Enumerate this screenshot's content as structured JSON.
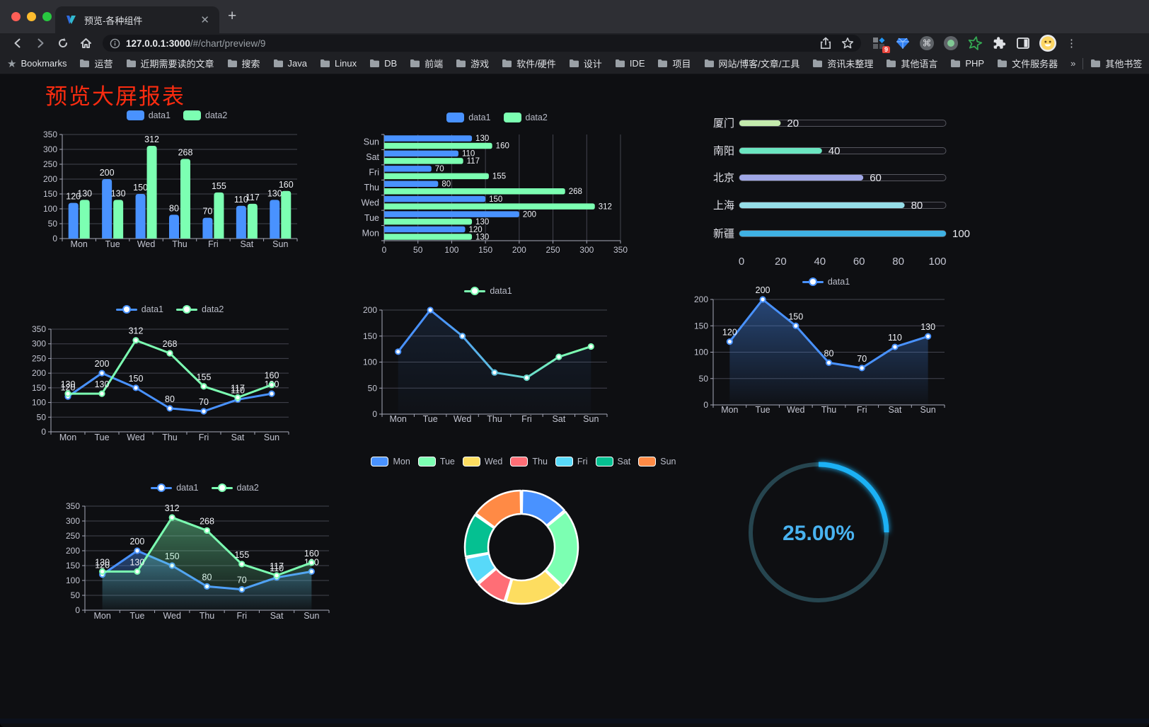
{
  "browser": {
    "tab_title": "预览-各种组件",
    "new_tab_label": "+",
    "url_host": "127.0.0.1:3000",
    "url_path": "/#/chart/preview/9",
    "extension_badge": "9",
    "bookmarks_label": "Bookmarks",
    "bookmarks": [
      "运营",
      "近期需要读的文章",
      "搜索",
      "Java",
      "Linux",
      "DB",
      "前端",
      "游戏",
      "软件/硬件",
      "设计",
      "IDE",
      "项目",
      "网站/博客/文章/工具",
      "资讯未整理",
      "其他语言",
      "PHP",
      "文件服务器"
    ],
    "bookmarks_overflow": "»",
    "other_bookmarks": "其他书签"
  },
  "page": {
    "title": "预览大屏报表",
    "title_color": "#fb2c10",
    "background": "#0e0f12"
  },
  "chart_data": [
    {
      "id": "bar-vertical",
      "type": "bar",
      "categories": [
        "Mon",
        "Tue",
        "Wed",
        "Thu",
        "Fri",
        "Sat",
        "Sun"
      ],
      "series": [
        {
          "name": "data1",
          "color": "#4992ff",
          "values": [
            120,
            200,
            150,
            80,
            70,
            110,
            130
          ]
        },
        {
          "name": "data2",
          "color": "#7cffb2",
          "values": [
            130,
            130,
            312,
            268,
            155,
            117,
            160
          ]
        }
      ],
      "ylim": [
        0,
        350
      ],
      "yticks": [
        0,
        50,
        100,
        150,
        200,
        250,
        300,
        350
      ],
      "legend": [
        "data1",
        "data2"
      ],
      "legend_position": "top",
      "grid": true,
      "labels": true
    },
    {
      "id": "bar-horizontal",
      "type": "barh",
      "categories_top_to_bottom": [
        "Sun",
        "Sat",
        "Fri",
        "Thu",
        "Wed",
        "Tue",
        "Mon"
      ],
      "series": [
        {
          "name": "data1",
          "color": "#4992ff",
          "values": [
            120,
            200,
            150,
            80,
            70,
            110,
            130
          ]
        },
        {
          "name": "data2",
          "color": "#7cffb2",
          "values": [
            130,
            130,
            312,
            268,
            155,
            117,
            160
          ]
        }
      ],
      "xlim": [
        0,
        350
      ],
      "xticks": [
        0,
        50,
        100,
        150,
        200,
        250,
        300,
        350
      ],
      "legend": [
        "data1",
        "data2"
      ],
      "legend_position": "top",
      "grid": true,
      "labels": true
    },
    {
      "id": "progress-bars",
      "type": "progress",
      "items": [
        {
          "label": "厦门",
          "value": 20,
          "color": "#c4ebad"
        },
        {
          "label": "南阳",
          "value": 40,
          "color": "#6be6c1"
        },
        {
          "label": "北京",
          "value": 60,
          "color": "#a0a7e6"
        },
        {
          "label": "上海",
          "value": 80,
          "color": "#96dee8"
        },
        {
          "label": "新疆",
          "value": 100,
          "color": "#3fb1e3"
        }
      ],
      "max": 100,
      "xticks": [
        0,
        20,
        40,
        60,
        80,
        100
      ]
    },
    {
      "id": "line-two-series",
      "type": "line",
      "categories": [
        "Mon",
        "Tue",
        "Wed",
        "Thu",
        "Fri",
        "Sat",
        "Sun"
      ],
      "series": [
        {
          "name": "data1",
          "color": "#4992ff",
          "values": [
            120,
            200,
            150,
            80,
            70,
            110,
            130
          ]
        },
        {
          "name": "data2",
          "color": "#7cffb2",
          "values": [
            130,
            130,
            312,
            268,
            155,
            117,
            160
          ]
        }
      ],
      "ylim": [
        0,
        350
      ],
      "yticks": [
        0,
        50,
        100,
        150,
        200,
        250,
        300,
        350
      ],
      "legend": [
        "data1",
        "data2"
      ],
      "labels": true,
      "area": false
    },
    {
      "id": "line-gradient",
      "type": "line",
      "categories": [
        "Mon",
        "Tue",
        "Wed",
        "Thu",
        "Fri",
        "Sat",
        "Sun"
      ],
      "series": [
        {
          "name": "data1",
          "color": "#4992ff",
          "color_gradient": [
            "#4992ff",
            "#7cffb2"
          ],
          "values": [
            120,
            200,
            150,
            80,
            70,
            110,
            130
          ]
        }
      ],
      "ylim": [
        0,
        200
      ],
      "yticks": [
        0,
        50,
        100,
        150,
        200
      ],
      "legend": [
        "data1"
      ],
      "labels": false,
      "area": false,
      "shadow": true
    },
    {
      "id": "area-single",
      "type": "line",
      "categories": [
        "Mon",
        "Tue",
        "Wed",
        "Thu",
        "Fri",
        "Sat",
        "Sun"
      ],
      "series": [
        {
          "name": "data1",
          "color": "#4992ff",
          "values": [
            120,
            200,
            150,
            80,
            70,
            110,
            130
          ]
        }
      ],
      "ylim": [
        0,
        200
      ],
      "yticks": [
        0,
        50,
        100,
        150,
        200
      ],
      "legend": [
        "data1"
      ],
      "labels": true,
      "area": true
    },
    {
      "id": "area-two-series",
      "type": "line",
      "categories": [
        "Mon",
        "Tue",
        "Wed",
        "Thu",
        "Fri",
        "Sat",
        "Sun"
      ],
      "series": [
        {
          "name": "data1",
          "color": "#4992ff",
          "values": [
            120,
            200,
            150,
            80,
            70,
            110,
            130
          ]
        },
        {
          "name": "data2",
          "color": "#7cffb2",
          "values": [
            130,
            130,
            312,
            268,
            155,
            117,
            160
          ]
        }
      ],
      "ylim": [
        0,
        350
      ],
      "yticks": [
        0,
        50,
        100,
        150,
        200,
        250,
        300,
        350
      ],
      "legend": [
        "data1",
        "data2"
      ],
      "labels": true,
      "area": true
    },
    {
      "id": "donut",
      "type": "donut",
      "items": [
        {
          "label": "Mon",
          "value": 120,
          "color": "#4992ff"
        },
        {
          "label": "Tue",
          "value": 200,
          "color": "#7cffb2"
        },
        {
          "label": "Wed",
          "value": 150,
          "color": "#fddd60"
        },
        {
          "label": "Thu",
          "value": 80,
          "color": "#ff6e76"
        },
        {
          "label": "Fri",
          "value": 70,
          "color": "#58d9f9"
        },
        {
          "label": "Sat",
          "value": 110,
          "color": "#05c091"
        },
        {
          "label": "Sun",
          "value": 130,
          "color": "#ff8a45"
        }
      ],
      "legend_position": "top"
    },
    {
      "id": "gauge",
      "type": "gauge",
      "value_percent": 25,
      "label": "25.00%",
      "color": "#1ab1f5",
      "track_color": "#26454f",
      "text_color": "#49b3f1"
    }
  ]
}
